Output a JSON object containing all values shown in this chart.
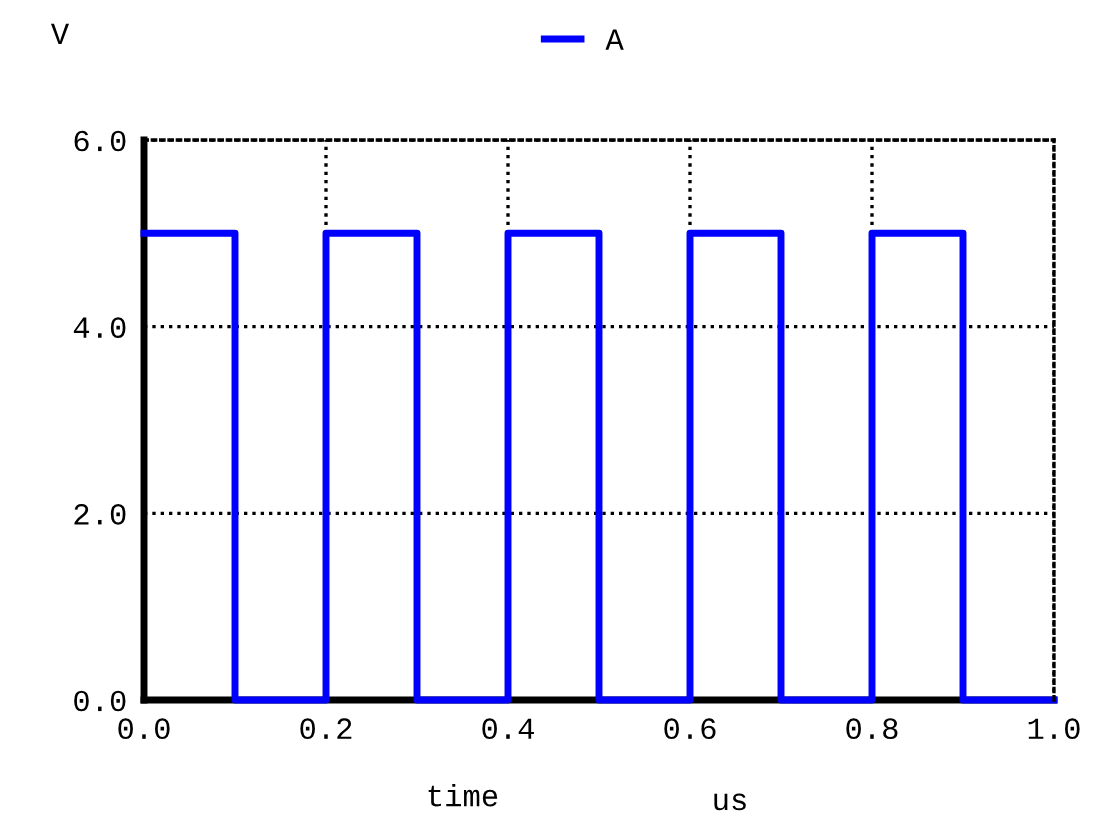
{
  "chart_data": {
    "type": "step",
    "xlabel": "time",
    "ylabel": "V",
    "annotations": [
      "us"
    ],
    "x": [
      0,
      0.1,
      0.2,
      0.3,
      0.4,
      0.5,
      0.6,
      0.7,
      0.8,
      0.9,
      1.0
    ],
    "series": [
      {
        "name": "A",
        "color": "#0000ff",
        "values": [
          5,
          0,
          5,
          0,
          5,
          0,
          5,
          0,
          5,
          0,
          0
        ]
      }
    ],
    "xlim": [
      0,
      1.0
    ],
    "xticks": [
      {
        "value": 0,
        "label": "0.0"
      },
      {
        "value": 0.2,
        "label": "0.2"
      },
      {
        "value": 0.4,
        "label": "0.4"
      },
      {
        "value": 0.6,
        "label": "0.6"
      },
      {
        "value": 0.8,
        "label": "0.8"
      },
      {
        "value": 1.0,
        "label": "1.0"
      }
    ],
    "ylim": [
      0,
      6.0
    ],
    "yticks": [
      {
        "value": 0,
        "label": "0.0"
      },
      {
        "value": 2,
        "label": "2.0"
      },
      {
        "value": 4,
        "label": "4.0"
      },
      {
        "value": 6,
        "label": "6.0"
      }
    ],
    "grid": true,
    "legend": "top",
    "line_style": "solid",
    "marker": "none"
  }
}
